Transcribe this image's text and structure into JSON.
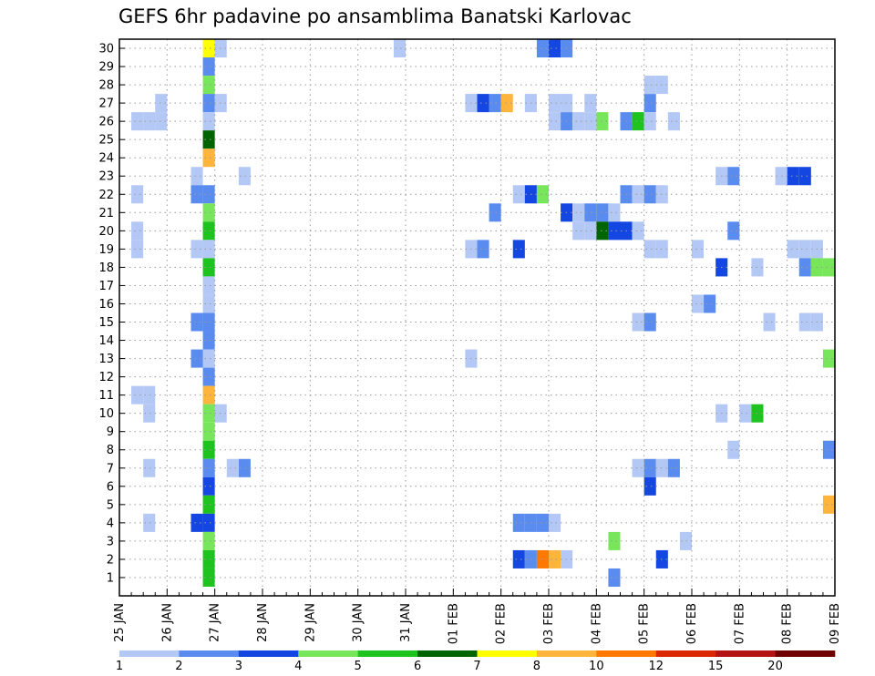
{
  "chart_data": {
    "type": "heatmap",
    "title": "GEFS 6hr padavine po ansamblima Banatski Karlovac",
    "y_ticks": [
      "1",
      "2",
      "3",
      "4",
      "5",
      "6",
      "7",
      "8",
      "9",
      "10",
      "11",
      "12",
      "13",
      "14",
      "15",
      "16",
      "17",
      "18",
      "19",
      "20",
      "21",
      "22",
      "23",
      "24",
      "25",
      "26",
      "27",
      "28",
      "29",
      "30"
    ],
    "x_ticks": [
      "25 JAN",
      "26 JAN",
      "27 JAN",
      "28 JAN",
      "29 JAN",
      "30 JAN",
      "31 JAN",
      "01 FEB",
      "02 FEB",
      "03 FEB",
      "04 FEB",
      "05 FEB",
      "06 FEB",
      "07 FEB",
      "08 FEB",
      "09 FEB"
    ],
    "xlim_steps": [
      0,
      60
    ],
    "ylim_members": [
      0,
      30
    ],
    "grid": true,
    "legend": {
      "placement": "bottom",
      "labels": [
        "1",
        "2",
        "3",
        "4",
        "5",
        "6",
        "7",
        "8",
        "10",
        "12",
        "15",
        "20"
      ],
      "colors": [
        "#b4c8f5",
        "#5a8cf0",
        "#1446e1",
        "#78e65a",
        "#1ec31e",
        "#006400",
        "#ffff00",
        "#ffb43c",
        "#ff7800",
        "#dc2800",
        "#b41414",
        "#6e0000"
      ]
    },
    "color_scale": [
      "#b4c8f5",
      "#5a8cf0",
      "#1446e1",
      "#78e65a",
      "#1ec31e",
      "#006400",
      "#ffff00",
      "#ffb43c",
      "#ff7800",
      "#dc2800",
      "#b41414",
      "#6e0000"
    ],
    "cells": [
      [
        3.5,
        26,
        1
      ],
      [
        3.5,
        27,
        1
      ],
      [
        2.5,
        26,
        1
      ],
      [
        1.5,
        26,
        1
      ],
      [
        1.5,
        22,
        1
      ],
      [
        1.5,
        20,
        1
      ],
      [
        1.5,
        19,
        1
      ],
      [
        1.5,
        11,
        1
      ],
      [
        2.5,
        11,
        1
      ],
      [
        2.5,
        10,
        1
      ],
      [
        2.5,
        7,
        1
      ],
      [
        2.5,
        4,
        1
      ],
      [
        7.5,
        30,
        7
      ],
      [
        7.5,
        29,
        2
      ],
      [
        7.5,
        28,
        4
      ],
      [
        7.5,
        27,
        2
      ],
      [
        7.5,
        26,
        1
      ],
      [
        7.5,
        25,
        6
      ],
      [
        7.5,
        24,
        8
      ],
      [
        7.5,
        22,
        2
      ],
      [
        7.5,
        21,
        4
      ],
      [
        7.5,
        20,
        5
      ],
      [
        7.5,
        19,
        1
      ],
      [
        7.5,
        18,
        5
      ],
      [
        7.5,
        17,
        1
      ],
      [
        7.5,
        16,
        1
      ],
      [
        7.5,
        15,
        2
      ],
      [
        7.5,
        14,
        2
      ],
      [
        7.5,
        13,
        1
      ],
      [
        7.5,
        12,
        2
      ],
      [
        7.5,
        11,
        8
      ],
      [
        7.5,
        10,
        4
      ],
      [
        7.5,
        9,
        4
      ],
      [
        7.5,
        8,
        5
      ],
      [
        7.5,
        7,
        2
      ],
      [
        7.5,
        6,
        3
      ],
      [
        7.5,
        5,
        5
      ],
      [
        7.5,
        4,
        3
      ],
      [
        7.5,
        3,
        4
      ],
      [
        7.5,
        2,
        5
      ],
      [
        7.5,
        1,
        5
      ],
      [
        8.5,
        30,
        1
      ],
      [
        8.5,
        27,
        1
      ],
      [
        6.5,
        23,
        1
      ],
      [
        6.5,
        22,
        2
      ],
      [
        6.5,
        19,
        1
      ],
      [
        6.5,
        15,
        2
      ],
      [
        6.5,
        13,
        2
      ],
      [
        6.5,
        4,
        3
      ],
      [
        8.5,
        10,
        1
      ],
      [
        10.5,
        23,
        1
      ],
      [
        10.5,
        7,
        2
      ],
      [
        9.5,
        7,
        1
      ],
      [
        23.5,
        30,
        1
      ],
      [
        29.5,
        27,
        1
      ],
      [
        31.5,
        27,
        2
      ],
      [
        30.5,
        27,
        3
      ],
      [
        32.5,
        27,
        8
      ],
      [
        34.5,
        27,
        1
      ],
      [
        36.5,
        27,
        1
      ],
      [
        37.5,
        27,
        1
      ],
      [
        39.5,
        27,
        1
      ],
      [
        44.5,
        27,
        2
      ],
      [
        44.5,
        28,
        1
      ],
      [
        45.5,
        28,
        1
      ],
      [
        35.5,
        30,
        2
      ],
      [
        36.5,
        30,
        3
      ],
      [
        37.5,
        30,
        2
      ],
      [
        36.5,
        26,
        1
      ],
      [
        37.5,
        26,
        2
      ],
      [
        38.5,
        26,
        1
      ],
      [
        39.5,
        26,
        1
      ],
      [
        40.5,
        26,
        4
      ],
      [
        42.5,
        26,
        2
      ],
      [
        43.5,
        26,
        5
      ],
      [
        44.5,
        26,
        1
      ],
      [
        46.5,
        26,
        1
      ],
      [
        33.5,
        22,
        1
      ],
      [
        34.5,
        22,
        3
      ],
      [
        35.5,
        22,
        4
      ],
      [
        42.5,
        22,
        2
      ],
      [
        43.5,
        22,
        1
      ],
      [
        44.5,
        22,
        2
      ],
      [
        45.5,
        22,
        1
      ],
      [
        31.5,
        21,
        2
      ],
      [
        37.5,
        21,
        3
      ],
      [
        38.5,
        21,
        1
      ],
      [
        39.5,
        21,
        2
      ],
      [
        40.5,
        21,
        2
      ],
      [
        41.5,
        21,
        1
      ],
      [
        38.5,
        20,
        1
      ],
      [
        39.5,
        20,
        1
      ],
      [
        40.5,
        20,
        6
      ],
      [
        41.5,
        20,
        3
      ],
      [
        42.5,
        20,
        3
      ],
      [
        43.5,
        20,
        1
      ],
      [
        51.5,
        20,
        2
      ],
      [
        29.5,
        19,
        1
      ],
      [
        30.5,
        19,
        2
      ],
      [
        33.5,
        19,
        3
      ],
      [
        44.5,
        19,
        1
      ],
      [
        45.5,
        19,
        1
      ],
      [
        48.5,
        19,
        1
      ],
      [
        56.5,
        19,
        1
      ],
      [
        57.5,
        19,
        1
      ],
      [
        58.5,
        19,
        1
      ],
      [
        50.5,
        23,
        1
      ],
      [
        51.5,
        23,
        2
      ],
      [
        55.5,
        23,
        1
      ],
      [
        56.5,
        23,
        3
      ],
      [
        57.5,
        23,
        3
      ],
      [
        50.5,
        18,
        3
      ],
      [
        53.5,
        18,
        1
      ],
      [
        57.5,
        18,
        2
      ],
      [
        58.5,
        18,
        4
      ],
      [
        59.5,
        18,
        4
      ],
      [
        48.5,
        16,
        1
      ],
      [
        49.5,
        16,
        2
      ],
      [
        43.5,
        15,
        1
      ],
      [
        44.5,
        15,
        2
      ],
      [
        54.5,
        15,
        1
      ],
      [
        57.5,
        15,
        1
      ],
      [
        58.5,
        15,
        1
      ],
      [
        29.5,
        13,
        1
      ],
      [
        59.5,
        13,
        4
      ],
      [
        50.5,
        10,
        1
      ],
      [
        52.5,
        10,
        1
      ],
      [
        53.5,
        10,
        5
      ],
      [
        51.5,
        8,
        1
      ],
      [
        59.5,
        8,
        2
      ],
      [
        43.5,
        7,
        1
      ],
      [
        44.5,
        7,
        2
      ],
      [
        45.5,
        7,
        1
      ],
      [
        46.5,
        7,
        2
      ],
      [
        44.5,
        6,
        3
      ],
      [
        59.5,
        5,
        8
      ],
      [
        33.5,
        4,
        2
      ],
      [
        34.5,
        4,
        2
      ],
      [
        35.5,
        4,
        2
      ],
      [
        36.5,
        4,
        1
      ],
      [
        41.5,
        3,
        4
      ],
      [
        47.5,
        3,
        1
      ],
      [
        33.5,
        2,
        3
      ],
      [
        34.5,
        2,
        2
      ],
      [
        35.5,
        2,
        9
      ],
      [
        36.5,
        2,
        8
      ],
      [
        37.5,
        2,
        1
      ],
      [
        45.5,
        2,
        3
      ],
      [
        41.5,
        1,
        2
      ]
    ]
  }
}
